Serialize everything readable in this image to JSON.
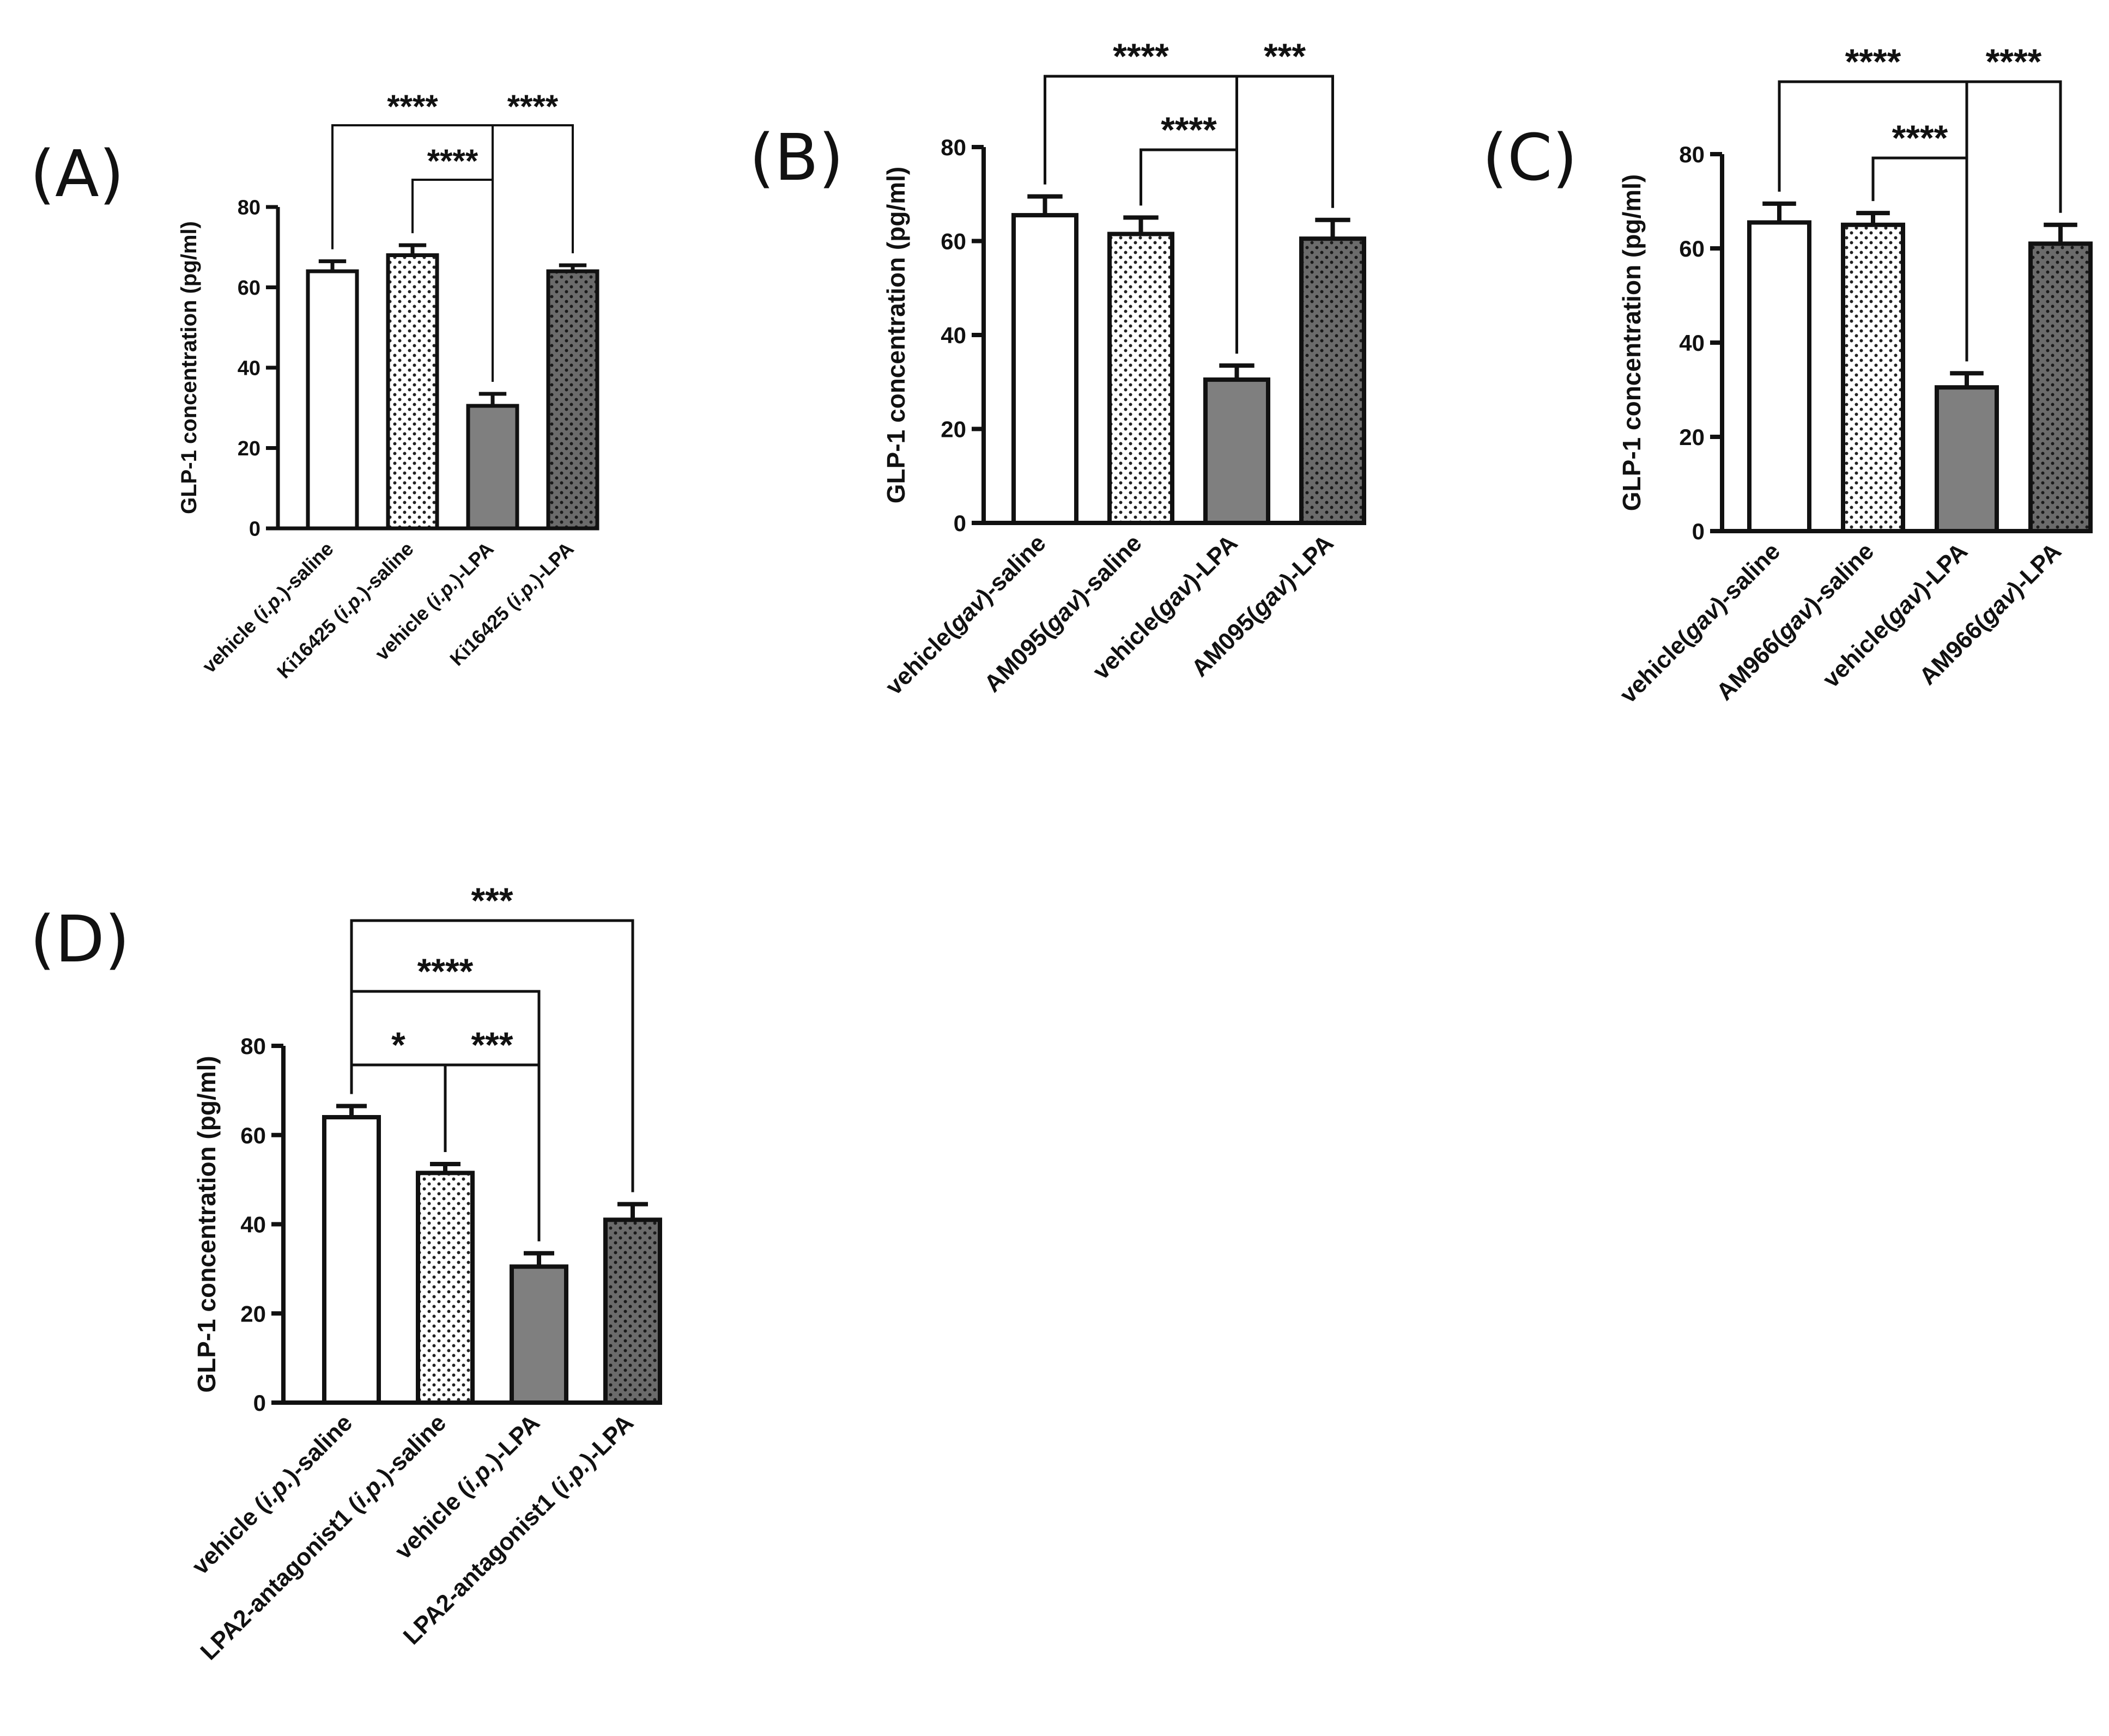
{
  "figure": {
    "fill_colors": {
      "white": "#ffffff",
      "light": "#ffffff",
      "mid": "#7f7f7f",
      "dark": "#6b6b6b",
      "dot": "#222222",
      "line": "#111111"
    }
  },
  "chart_data": [
    {
      "panel": "(A)",
      "type": "bar",
      "ylabel": "GLP-1 concentration (pg/ml)",
      "ylim": [
        0,
        80
      ],
      "yticks": [
        0,
        20,
        40,
        60,
        80
      ],
      "categories": [
        [
          {
            "t": "vehicle ("
          },
          {
            "t": "i.p.",
            "i": true
          },
          {
            "t": ")-saline"
          }
        ],
        [
          {
            "t": "Ki16425 ("
          },
          {
            "t": "i.p.",
            "i": true
          },
          {
            "t": ")-saline"
          }
        ],
        [
          {
            "t": "vehicle ("
          },
          {
            "t": "i.p.",
            "i": true
          },
          {
            "t": ")-LPA"
          }
        ],
        [
          {
            "t": "Ki16425 ("
          },
          {
            "t": "i.p.",
            "i": true
          },
          {
            "t": ")-LPA"
          }
        ]
      ],
      "values": [
        64,
        68,
        30.5,
        64
      ],
      "errors": [
        2.5,
        2.5,
        3,
        1.5
      ],
      "fills": [
        "white",
        "light",
        "mid",
        "dark"
      ],
      "comparisons": [
        {
          "from": 0,
          "to": 2,
          "label": "****",
          "level": 2
        },
        {
          "from": 2,
          "to": 3,
          "label": "****",
          "level": 2
        },
        {
          "from": 1,
          "to": 2,
          "label": "****",
          "level": 1
        }
      ]
    },
    {
      "panel": "(B)",
      "type": "bar",
      "ylabel": "GLP-1 concentration (pg/ml)",
      "ylim": [
        0,
        80
      ],
      "yticks": [
        0,
        20,
        40,
        60,
        80
      ],
      "categories": [
        [
          {
            "t": "vehicle("
          },
          {
            "t": "gav",
            "i": true
          },
          {
            "t": ")-saline"
          }
        ],
        [
          {
            "t": "AM095("
          },
          {
            "t": "gav",
            "i": true
          },
          {
            "t": ")-saline"
          }
        ],
        [
          {
            "t": "vehicle("
          },
          {
            "t": "gav",
            "i": true
          },
          {
            "t": ")-LPA"
          }
        ],
        [
          {
            "t": "AM095("
          },
          {
            "t": "gav",
            "i": true
          },
          {
            "t": ")-LPA"
          }
        ]
      ],
      "values": [
        65.5,
        61.5,
        30.5,
        60.5
      ],
      "errors": [
        4,
        3.5,
        3,
        4
      ],
      "fills": [
        "white",
        "light",
        "mid",
        "dark"
      ],
      "comparisons": [
        {
          "from": 0,
          "to": 2,
          "label": "****",
          "level": 2
        },
        {
          "from": 2,
          "to": 3,
          "label": "***",
          "level": 2
        },
        {
          "from": 1,
          "to": 2,
          "label": "****",
          "level": 1
        }
      ]
    },
    {
      "panel": "(C)",
      "type": "bar",
      "ylabel": "GLP-1 concentration (pg/ml)",
      "ylim": [
        0,
        80
      ],
      "yticks": [
        0,
        20,
        40,
        60,
        80
      ],
      "categories": [
        [
          {
            "t": "vehicle("
          },
          {
            "t": "gav",
            "i": true
          },
          {
            "t": ")-saline"
          }
        ],
        [
          {
            "t": "AM966("
          },
          {
            "t": "gav",
            "i": true
          },
          {
            "t": ")-saline"
          }
        ],
        [
          {
            "t": "vehicle("
          },
          {
            "t": "gav",
            "i": true
          },
          {
            "t": ")-LPA"
          }
        ],
        [
          {
            "t": "AM966("
          },
          {
            "t": "gav",
            "i": true
          },
          {
            "t": ")-LPA"
          }
        ]
      ],
      "values": [
        65.5,
        65,
        30.5,
        61
      ],
      "errors": [
        4,
        2.5,
        3,
        4
      ],
      "fills": [
        "white",
        "light",
        "mid",
        "dark"
      ],
      "comparisons": [
        {
          "from": 0,
          "to": 2,
          "label": "****",
          "level": 2
        },
        {
          "from": 2,
          "to": 3,
          "label": "****",
          "level": 2
        },
        {
          "from": 1,
          "to": 2,
          "label": "****",
          "level": 1
        }
      ]
    },
    {
      "panel": "(D)",
      "type": "bar",
      "ylabel": "GLP-1 concentration (pg/ml)",
      "ylim": [
        0,
        80
      ],
      "yticks": [
        0,
        20,
        40,
        60,
        80
      ],
      "categories": [
        [
          {
            "t": "vehicle ("
          },
          {
            "t": "i.p.",
            "i": true
          },
          {
            "t": ")-saline"
          }
        ],
        [
          {
            "t": "LPA2-antagonist1 ("
          },
          {
            "t": "i.p.",
            "i": true
          },
          {
            "t": ")-saline"
          }
        ],
        [
          {
            "t": "vehicle ("
          },
          {
            "t": "i.p.",
            "i": true
          },
          {
            "t": ")-LPA"
          }
        ],
        [
          {
            "t": "LPA2-antagonist1 ("
          },
          {
            "t": "i.p.",
            "i": true
          },
          {
            "t": ")-LPA"
          }
        ]
      ],
      "values": [
        64,
        51.5,
        30.5,
        41
      ],
      "errors": [
        2.5,
        2,
        3,
        3.5
      ],
      "fills": [
        "white",
        "light",
        "mid",
        "dark"
      ],
      "comparisons": [
        {
          "from": 0,
          "to": 3,
          "label": "***",
          "level": 3
        },
        {
          "from": 0,
          "to": 2,
          "label": "****",
          "level": 2
        },
        {
          "from": 0,
          "to": 1,
          "label": "*",
          "level": 1
        },
        {
          "from": 1,
          "to": 2,
          "label": "***",
          "level": 1
        }
      ]
    }
  ]
}
